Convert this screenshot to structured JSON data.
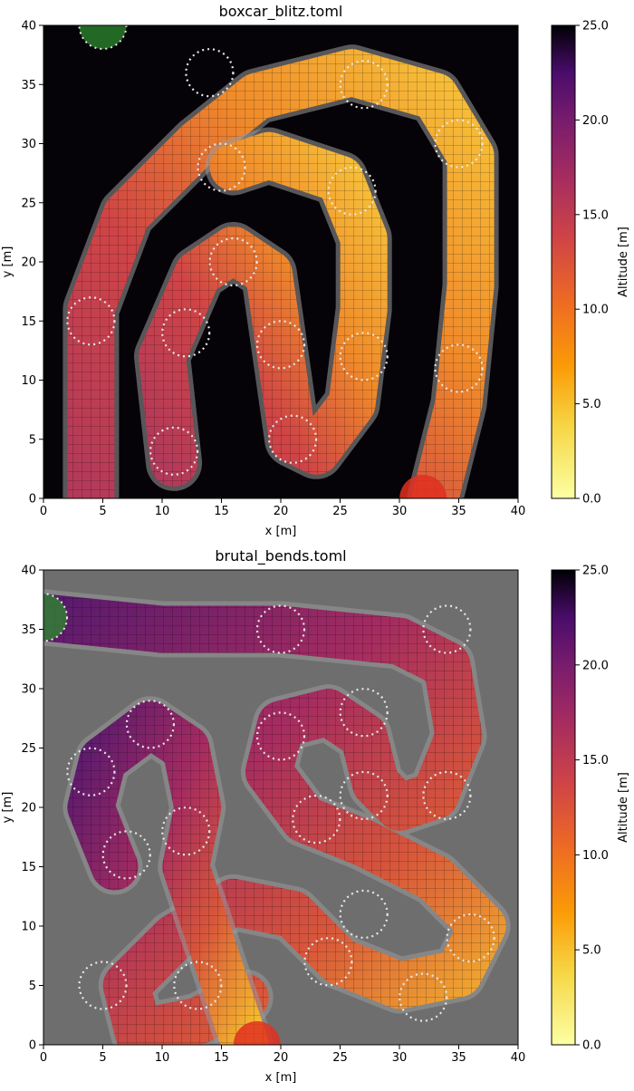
{
  "chart_data": [
    {
      "type": "heatmap",
      "title": "boxcar_blitz.toml",
      "xlabel": "x [m]",
      "ylabel": "y [m]",
      "xlim": [
        0,
        40
      ],
      "ylim": [
        0,
        40
      ],
      "xticks": [
        "0",
        "5",
        "10",
        "15",
        "20",
        "25",
        "30",
        "35",
        "40"
      ],
      "yticks": [
        "0",
        "5",
        "10",
        "15",
        "20",
        "25",
        "30",
        "35",
        "40"
      ],
      "colorbar": {
        "label": "Altitude [m]",
        "range": [
          0,
          25
        ],
        "ticks": [
          "0.0",
          "5.0",
          "10.0",
          "15.0",
          "20.0",
          "25.0"
        ],
        "colormap": "inferno_r"
      },
      "track": {
        "path": [
          [
            4,
            0
          ],
          [
            4,
            16
          ],
          [
            7,
            24
          ],
          [
            13,
            30
          ],
          [
            18,
            34
          ],
          [
            26,
            36
          ],
          [
            33,
            34
          ],
          [
            36,
            29
          ],
          [
            36,
            18
          ],
          [
            35,
            8
          ],
          [
            33,
            0
          ]
        ],
        "inner": [
          [
            11,
            3
          ],
          [
            10,
            12
          ],
          [
            13,
            19
          ],
          [
            16,
            21
          ],
          [
            19,
            19
          ],
          [
            20,
            12
          ],
          [
            21,
            5
          ],
          [
            23,
            4
          ],
          [
            26,
            8
          ],
          [
            27,
            16
          ],
          [
            27,
            22
          ],
          [
            25,
            27
          ],
          [
            19,
            29
          ],
          [
            16,
            28
          ]
        ],
        "start": [
          5,
          40
        ],
        "finish": [
          32,
          0
        ]
      },
      "checkpoints": [
        [
          14,
          36
        ],
        [
          27,
          35
        ],
        [
          35,
          30
        ],
        [
          15,
          28
        ],
        [
          26,
          26
        ],
        [
          16,
          20
        ],
        [
          4,
          15
        ],
        [
          12,
          14
        ],
        [
          20,
          13
        ],
        [
          27,
          12
        ],
        [
          35,
          11
        ],
        [
          11,
          4
        ],
        [
          21,
          5
        ]
      ]
    },
    {
      "type": "heatmap",
      "title": "brutal_bends.toml",
      "xlabel": "x [m]",
      "ylabel": "y [m]",
      "xlim": [
        0,
        40
      ],
      "ylim": [
        0,
        40
      ],
      "xticks": [
        "0",
        "5",
        "10",
        "15",
        "20",
        "25",
        "30",
        "35",
        "40"
      ],
      "yticks": [
        "0",
        "5",
        "10",
        "15",
        "20",
        "25",
        "30",
        "35",
        "40"
      ],
      "colorbar": {
        "label": "Altitude [m]",
        "range": [
          0,
          25
        ],
        "ticks": [
          "0.0",
          "5.0",
          "10.0",
          "15.0",
          "20.0",
          "25.0"
        ],
        "colormap": "inferno_r"
      },
      "track": {
        "path": [
          [
            0,
            36
          ],
          [
            10,
            35
          ],
          [
            20,
            35
          ],
          [
            30,
            34
          ],
          [
            34,
            32
          ],
          [
            35,
            26
          ],
          [
            33,
            21
          ],
          [
            30,
            20
          ],
          [
            28,
            22
          ],
          [
            27,
            26
          ],
          [
            24,
            28
          ],
          [
            20,
            27
          ],
          [
            19,
            23
          ],
          [
            22,
            19
          ],
          [
            27,
            17
          ],
          [
            33,
            14
          ],
          [
            37,
            10
          ],
          [
            35,
            6
          ],
          [
            30,
            5
          ],
          [
            25,
            7
          ],
          [
            21,
            11
          ],
          [
            16,
            12
          ],
          [
            11,
            9
          ],
          [
            7,
            5
          ],
          [
            8,
            1
          ],
          [
            13,
            2
          ],
          [
            17,
            4
          ]
        ],
        "inner": [
          [
            6,
            15
          ],
          [
            4,
            20
          ],
          [
            5,
            24
          ],
          [
            9,
            27
          ],
          [
            12,
            25
          ],
          [
            13,
            20
          ],
          [
            12,
            15
          ],
          [
            17,
            0
          ]
        ],
        "start": [
          0,
          36
        ],
        "finish": [
          18,
          0
        ]
      },
      "checkpoints": [
        [
          20,
          35
        ],
        [
          34,
          35
        ],
        [
          9,
          27
        ],
        [
          27,
          28
        ],
        [
          4,
          23
        ],
        [
          20,
          26
        ],
        [
          34,
          21
        ],
        [
          27,
          21
        ],
        [
          23,
          19
        ],
        [
          12,
          18
        ],
        [
          7,
          16
        ],
        [
          27,
          11
        ],
        [
          36,
          9
        ],
        [
          24,
          7
        ],
        [
          5,
          5
        ],
        [
          13,
          5
        ],
        [
          32,
          4
        ]
      ]
    }
  ]
}
